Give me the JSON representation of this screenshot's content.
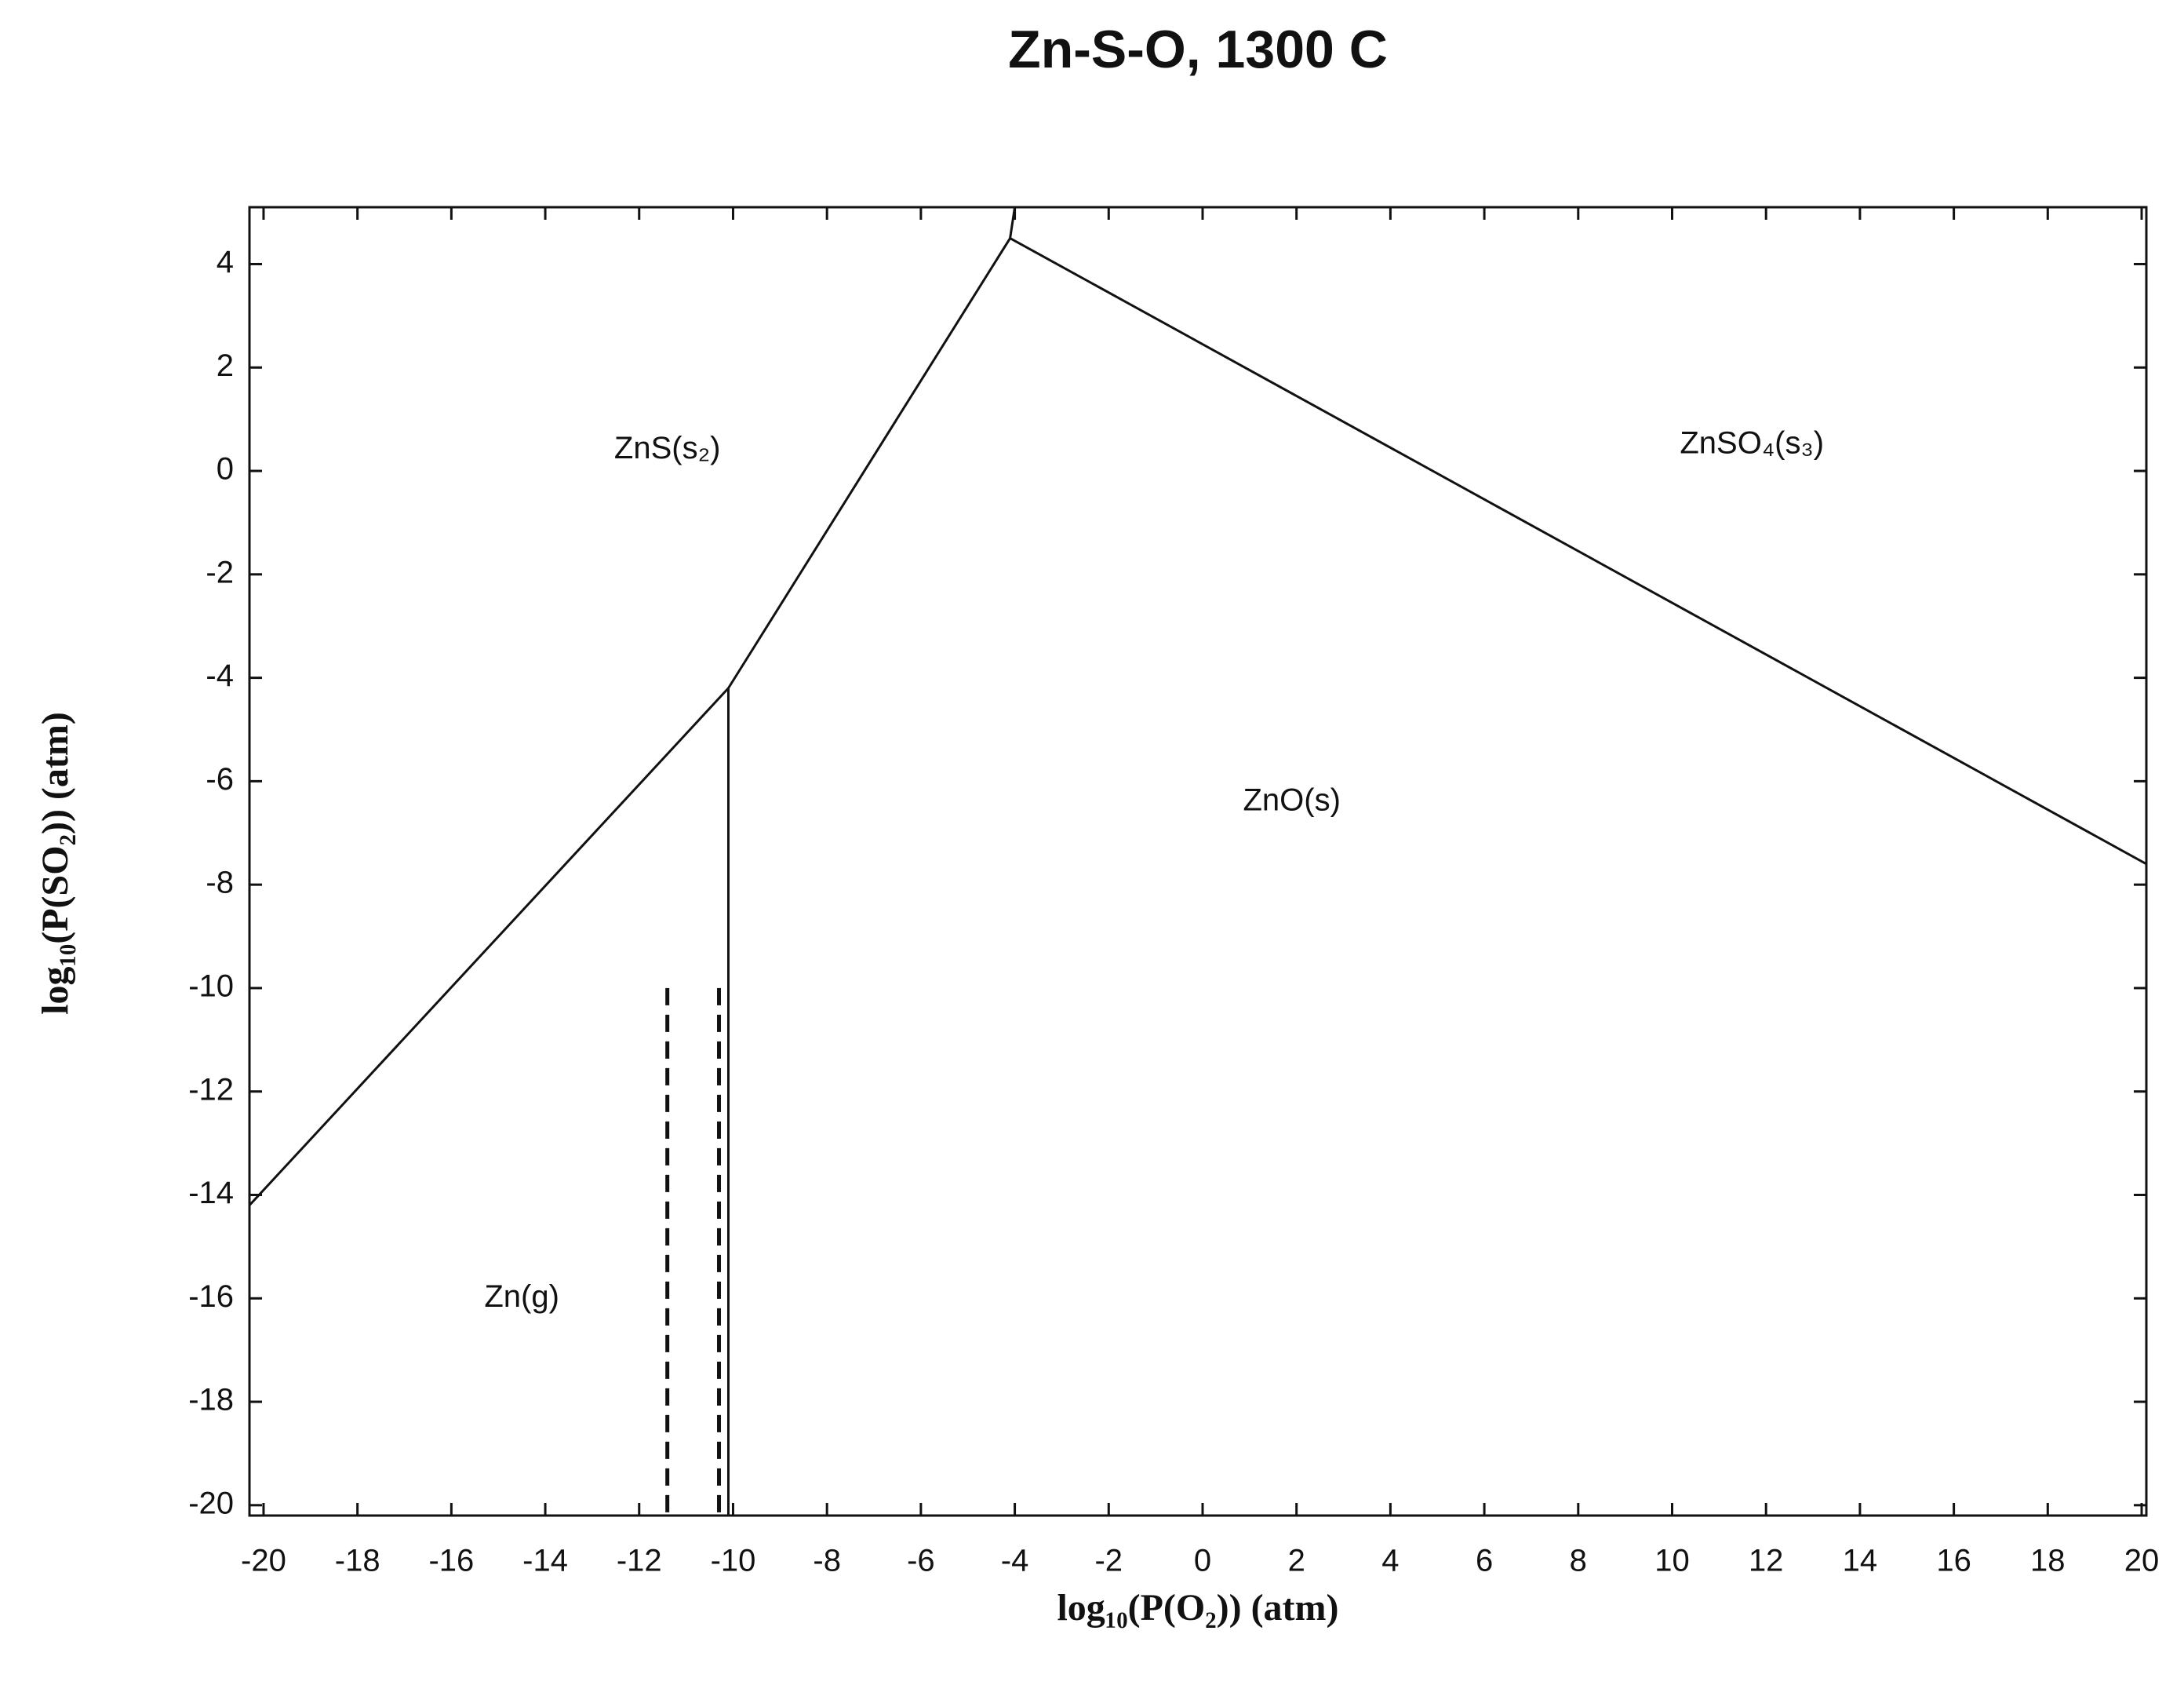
{
  "chart_data": {
    "type": "line",
    "title": "Zn-S-O, 1300 C",
    "x_label": "log₁₀(P(O₂)) (atm)",
    "y_label": "log₁₀(P(SO₂)) (atm)",
    "xlim": [
      -20.3,
      20.1
    ],
    "ylim": [
      -20.2,
      5.1
    ],
    "xticks": [
      -20,
      -18,
      -16,
      -14,
      -12,
      -10,
      -8,
      -6,
      -4,
      -2,
      0,
      2,
      4,
      6,
      8,
      10,
      12,
      14,
      16,
      18,
      20
    ],
    "yticks": [
      -20,
      -18,
      -16,
      -14,
      -12,
      -10,
      -8,
      -6,
      -4,
      -2,
      0,
      2,
      4
    ],
    "color": "#111111",
    "series": [
      {
        "x": [
          -20.3,
          -10.1,
          -4.1,
          -4.0
        ],
        "values": [
          -14.2,
          -4.2,
          4.5,
          5.1
        ],
        "dashed": false
      },
      {
        "x": [
          -4.1,
          20.1
        ],
        "values": [
          4.5,
          -7.6
        ],
        "dashed": false
      },
      {
        "x": [
          -10.1,
          -10.1
        ],
        "values": [
          -4.2,
          -20.2
        ],
        "dashed": false
      },
      {
        "x": [
          -11.4,
          -11.4
        ],
        "values": [
          -10,
          -20.2
        ],
        "dashed": true
      },
      {
        "x": [
          -10.3,
          -10.3
        ],
        "values": [
          -10,
          -20.2
        ],
        "dashed": true
      }
    ],
    "annotations": [
      {
        "text": "ZnS(s₂)",
        "x": -11.4,
        "y": 0.4
      },
      {
        "text": "ZnSO₄(s₃)",
        "x": 11.7,
        "y": 0.5
      },
      {
        "text": "ZnO(s)",
        "x": 1.9,
        "y": -6.4
      },
      {
        "text": "Zn(g)",
        "x": -14.5,
        "y": -16.0
      }
    ]
  }
}
